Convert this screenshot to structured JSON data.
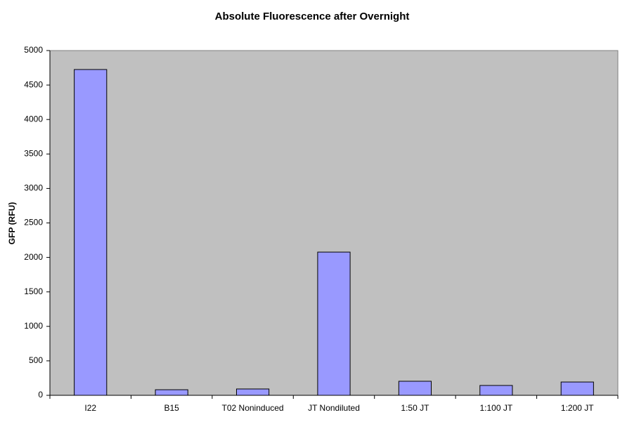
{
  "chart_data": {
    "type": "bar",
    "title": "Absolute Fluorescence after Overnight",
    "y_label": "GFP (RFU)",
    "categories": [
      "I22",
      "B15",
      "T02 Noninduced",
      "JT Nondiluted",
      "1:50 JT",
      "1:100 JT",
      "1:200 JT"
    ],
    "values": [
      4725,
      81,
      92,
      2077,
      204,
      143,
      193
    ],
    "color": "#9999ff",
    "ylim": [
      0,
      5000
    ],
    "yticks": [
      0,
      500,
      1000,
      1500,
      2000,
      2500,
      3000,
      3500,
      4000,
      4500,
      5000
    ],
    "grid": false
  }
}
